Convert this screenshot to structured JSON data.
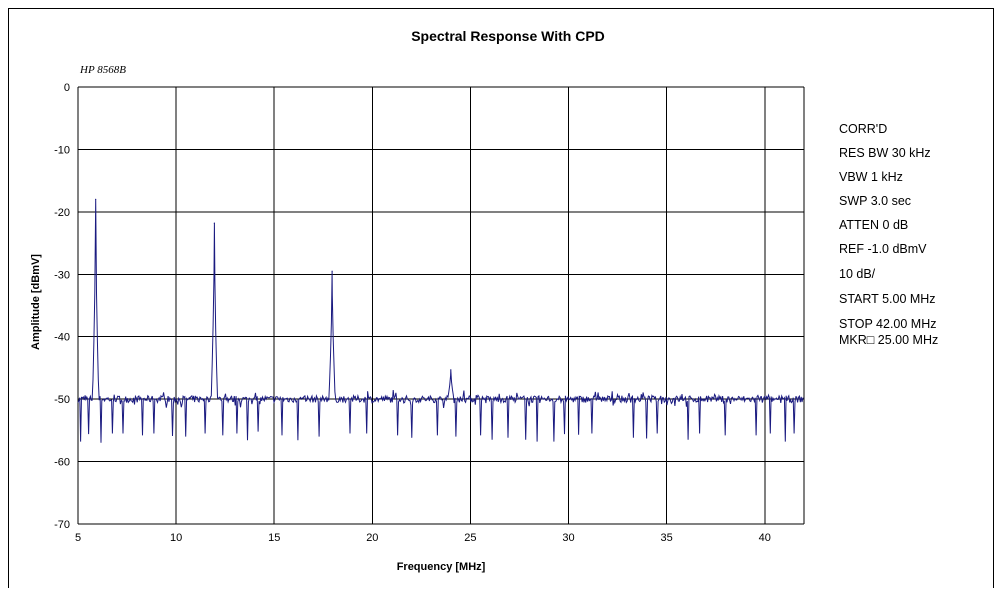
{
  "chart_data": {
    "type": "line",
    "title": "Spectral Response With CPD",
    "instrument_label": "HP 8568B",
    "xlabel": "Frequency [MHz]",
    "ylabel": "Amplitude [dBmV]",
    "xlim": [
      5,
      42
    ],
    "ylim": [
      -70,
      0
    ],
    "x_ticks": [
      5,
      10,
      15,
      20,
      25,
      30,
      35,
      40
    ],
    "y_ticks": [
      0,
      -10,
      -20,
      -30,
      -40,
      -50,
      -60,
      -70
    ],
    "grid": true,
    "line_color": "#1a1a80",
    "noise_floor_dBmV": -50,
    "series": [
      {
        "peaks": [
          {
            "x": 5.9,
            "y": -18
          },
          {
            "x": 11.95,
            "y": -21.8
          },
          {
            "x": 17.95,
            "y": -29.5
          },
          {
            "x": 24.0,
            "y": -45.3
          }
        ],
        "dips": [
          {
            "x": 5.15,
            "y": -56.8
          },
          {
            "x": 5.55,
            "y": -55.6
          },
          {
            "x": 6.15,
            "y": -57.0
          },
          {
            "x": 6.75,
            "y": -55.5
          },
          {
            "x": 7.3,
            "y": -55.5
          },
          {
            "x": 8.3,
            "y": -55.8
          },
          {
            "x": 8.85,
            "y": -55.5
          },
          {
            "x": 9.8,
            "y": -55.9
          },
          {
            "x": 10.5,
            "y": -56.0
          },
          {
            "x": 11.5,
            "y": -55.5
          },
          {
            "x": 12.4,
            "y": -55.8
          },
          {
            "x": 13.1,
            "y": -55.5
          },
          {
            "x": 13.65,
            "y": -56.6
          },
          {
            "x": 14.2,
            "y": -55.2
          },
          {
            "x": 15.4,
            "y": -55.8
          },
          {
            "x": 16.2,
            "y": -56.6
          },
          {
            "x": 17.3,
            "y": -56.0
          },
          {
            "x": 18.1,
            "y": -57.0
          },
          {
            "x": 18.85,
            "y": -55.5
          },
          {
            "x": 19.7,
            "y": -55.5
          },
          {
            "x": 21.3,
            "y": -55.8
          },
          {
            "x": 22.0,
            "y": -56.2
          },
          {
            "x": 23.3,
            "y": -55.8
          },
          {
            "x": 24.25,
            "y": -56.0
          },
          {
            "x": 25.5,
            "y": -55.8
          },
          {
            "x": 26.1,
            "y": -56.5
          },
          {
            "x": 26.9,
            "y": -56.2
          },
          {
            "x": 27.8,
            "y": -56.5
          },
          {
            "x": 28.4,
            "y": -56.8
          },
          {
            "x": 29.25,
            "y": -56.8
          },
          {
            "x": 29.8,
            "y": -55.6
          },
          {
            "x": 30.5,
            "y": -55.7
          },
          {
            "x": 31.2,
            "y": -55.5
          },
          {
            "x": 33.3,
            "y": -56.2
          },
          {
            "x": 34.0,
            "y": -56.3
          },
          {
            "x": 34.5,
            "y": -55.5
          },
          {
            "x": 36.1,
            "y": -56.5
          },
          {
            "x": 36.7,
            "y": -55.5
          },
          {
            "x": 38.0,
            "y": -55.8
          },
          {
            "x": 39.55,
            "y": -55.8
          },
          {
            "x": 40.3,
            "y": -55.5
          },
          {
            "x": 41.05,
            "y": -56.8
          },
          {
            "x": 41.5,
            "y": -55.5
          }
        ]
      }
    ]
  },
  "settings": [
    "CORR'D",
    "RES BW 30 kHz",
    "VBW 1 kHz",
    "SWP 3.0  sec",
    "ATTEN 0 dB",
    "REF -1.0 dBmV",
    "10 dB/",
    "START 5.00 MHz",
    "STOP 42.00 MHz",
    "MKR□ 25.00 MHz"
  ]
}
